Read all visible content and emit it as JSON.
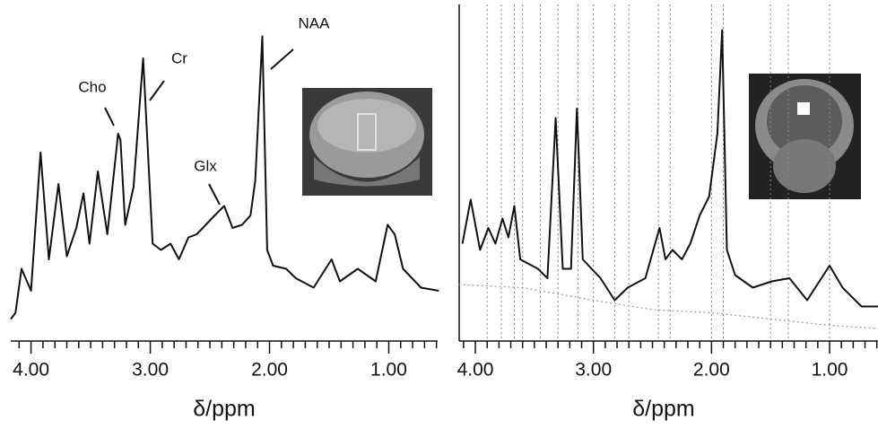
{
  "chart_data": [
    {
      "type": "line",
      "xlabel": "δ/ppm",
      "color": "#111111",
      "x": [
        4.17,
        4.13,
        4.08,
        4.0,
        3.92,
        3.85,
        3.77,
        3.7,
        3.62,
        3.56,
        3.51,
        3.44,
        3.36,
        3.27,
        3.25,
        3.21,
        3.14,
        3.06,
        2.98,
        2.91,
        2.83,
        2.76,
        2.68,
        2.61,
        2.46,
        2.38,
        2.31,
        2.23,
        2.16,
        2.12,
        2.06,
        2.02,
        1.97,
        1.86,
        1.78,
        1.63,
        1.48,
        1.41,
        1.26,
        1.11,
        1.01,
        0.95,
        0.88,
        0.73,
        0.58
      ],
      "values": [
        7,
        9,
        23,
        16,
        60,
        26,
        50,
        27,
        36,
        47,
        31,
        54,
        34,
        66,
        64,
        37,
        49,
        90,
        31,
        29,
        31,
        26,
        33,
        34,
        40,
        43,
        36,
        37,
        40,
        51,
        97,
        29,
        24,
        23,
        20,
        17,
        26,
        19,
        23,
        19,
        37,
        34,
        23,
        17,
        16
      ],
      "xlim": [
        4.17,
        0.59
      ],
      "ylim": [
        0,
        100
      ],
      "xticks": [
        {
          "value": 4,
          "label": "4.00"
        },
        {
          "value": 3,
          "label": "3.00"
        },
        {
          "value": 2,
          "label": "2.00"
        },
        {
          "value": 1,
          "label": "1.00"
        }
      ],
      "minor_xticks": [
        4.1,
        3.9,
        3.8,
        3.7,
        3.6,
        3.5,
        3.4,
        3.3,
        3.2,
        3.1,
        2.9,
        2.8,
        2.7,
        2.6,
        2.5,
        2.4,
        2.3,
        2.2,
        2.1,
        1.9,
        1.8,
        1.7,
        1.6,
        1.5,
        1.4,
        1.3,
        1.2,
        1.1,
        0.9,
        0.8,
        0.7,
        0.6
      ],
      "annotations": [
        "Cho",
        "Cr",
        "Glx",
        "NAA"
      ]
    },
    {
      "type": "line",
      "xlabel": "δ/ppm",
      "color": "#111111",
      "x": [
        4.11,
        4.04,
        3.96,
        3.89,
        3.83,
        3.77,
        3.72,
        3.67,
        3.62,
        3.47,
        3.39,
        3.32,
        3.26,
        3.19,
        3.14,
        3.09,
        2.94,
        2.82,
        2.71,
        2.56,
        2.44,
        2.39,
        2.33,
        2.25,
        2.18,
        2.1,
        2.02,
        1.95,
        1.91,
        1.87,
        1.8,
        1.65,
        1.49,
        1.34,
        1.19,
        1.0,
        0.89,
        0.73,
        0.59
      ],
      "values": [
        31,
        45,
        29,
        36,
        31,
        39,
        33,
        43,
        26,
        23,
        20,
        71,
        23,
        23,
        74,
        26,
        20,
        13,
        17,
        20,
        36,
        26,
        29,
        26,
        31,
        40,
        46,
        66,
        99,
        29,
        21,
        17,
        19,
        20,
        13,
        24,
        17,
        11,
        11
      ],
      "baseline": {
        "color": "#999999",
        "x": [
          4.14,
          3.6,
          3.0,
          2.5,
          2.0,
          1.5,
          1.0,
          0.59
        ],
        "values": [
          18,
          17,
          13,
          10,
          9,
          7,
          5,
          4
        ]
      },
      "xlim": [
        4.137,
        0.59
      ],
      "ylim": [
        0,
        100
      ],
      "grid_x": [
        3.9,
        3.78,
        3.67,
        3.6,
        3.45,
        3.3,
        3.13,
        3.0,
        2.82,
        2.7,
        2.45,
        2.35,
        2.0,
        1.9,
        1.5,
        1.35,
        1.0
      ],
      "y_axis_line": true,
      "xticks": [
        {
          "value": 4,
          "label": "4.00"
        },
        {
          "value": 3,
          "label": "3.00"
        },
        {
          "value": 2,
          "label": "2.00"
        },
        {
          "value": 1,
          "label": "1.00"
        }
      ],
      "minor_xticks": [
        4.1,
        3.9,
        3.8,
        3.7,
        3.6,
        3.5,
        3.4,
        3.3,
        3.2,
        3.1,
        2.9,
        2.8,
        2.7,
        2.6,
        2.5,
        2.4,
        2.3,
        2.2,
        2.1,
        1.9,
        1.8,
        1.7,
        1.6,
        1.5,
        1.4,
        1.3,
        1.2,
        1.1,
        0.9,
        0.8,
        0.7,
        0.6
      ]
    }
  ]
}
